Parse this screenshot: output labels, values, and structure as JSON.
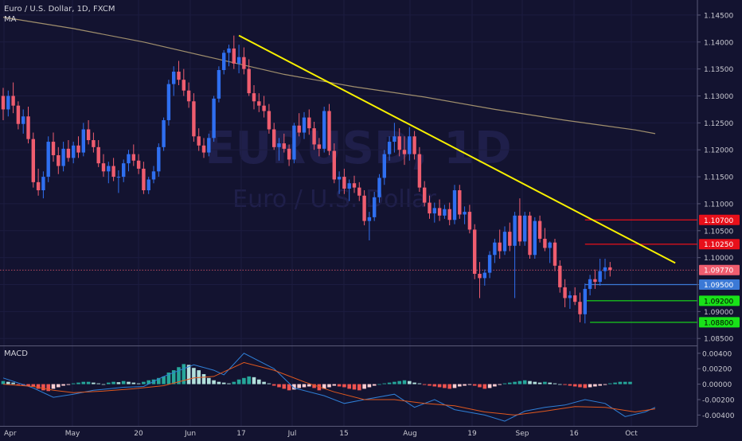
{
  "header": {
    "symbol_line": "Euro / U.S. Dollar, 1D, FXCM",
    "indicator_label": "MA"
  },
  "watermark": {
    "symbol": "EURUSD, 1D",
    "description": "Euro / U.S. Dollar"
  },
  "macd_panel": {
    "label": "MACD"
  },
  "colors": {
    "background": "#131330",
    "candle_up": "#2f6ff0",
    "candle_down": "#ef5d6f",
    "ma_line": "#a08f6d",
    "trendline": "#f7f000",
    "price_line": "#ef5d6f",
    "level_blue": "#3b79d6",
    "level_red": "#e8101a",
    "level_green": "#19e219",
    "macd_line": "#2f7fd6",
    "signal_line": "#e0581e",
    "hist_up_strong": "#26a69a",
    "hist_up_weak": "#b2dfdb",
    "hist_down_strong": "#ef5350",
    "hist_down_weak": "#ffcdd2",
    "axis_text": "#c8c8d0",
    "grid": "#1c1c40"
  },
  "chart_data": [
    {
      "type": "candlestick",
      "title": "Euro / U.S. Dollar, 1D, FXCM",
      "x_labels": [
        "Apr",
        "May",
        "20",
        "Jun",
        "17",
        "Jul",
        "15",
        "Aug",
        "19",
        "Sep",
        "16",
        "Oct"
      ],
      "y_ticks": [
        "1.14500",
        "1.14000",
        "1.13500",
        "1.13000",
        "1.12500",
        "1.12000",
        "1.11500",
        "1.11000",
        "1.10500",
        "1.10000",
        "1.09500",
        "1.09000",
        "1.08500"
      ],
      "ylim": [
        1.084,
        1.1475
      ],
      "bars": [
        [
          1.13,
          1.1315,
          1.1255,
          1.1275
        ],
        [
          1.1275,
          1.131,
          1.1262,
          1.13
        ],
        [
          1.13,
          1.1325,
          1.1268,
          1.1282
        ],
        [
          1.1282,
          1.129,
          1.1238,
          1.1248
        ],
        [
          1.1248,
          1.1275,
          1.123,
          1.1262
        ],
        [
          1.1262,
          1.128,
          1.1212,
          1.122
        ],
        [
          1.122,
          1.1232,
          1.113,
          1.114
        ],
        [
          1.114,
          1.1165,
          1.1115,
          1.1125
        ],
        [
          1.1125,
          1.116,
          1.111,
          1.115
        ],
        [
          1.115,
          1.1225,
          1.114,
          1.1215
        ],
        [
          1.1215,
          1.1232,
          1.1178,
          1.119
        ],
        [
          1.119,
          1.1205,
          1.1155,
          1.117
        ],
        [
          1.117,
          1.1215,
          1.116,
          1.1202
        ],
        [
          1.1202,
          1.1218,
          1.1178,
          1.1185
        ],
        [
          1.1185,
          1.1215,
          1.1175,
          1.1208
        ],
        [
          1.1208,
          1.1225,
          1.1185,
          1.1195
        ],
        [
          1.1195,
          1.125,
          1.1188,
          1.1238
        ],
        [
          1.1238,
          1.1255,
          1.121,
          1.1218
        ],
        [
          1.1218,
          1.1232,
          1.1195,
          1.1205
        ],
        [
          1.1205,
          1.1218,
          1.1168,
          1.1175
        ],
        [
          1.1175,
          1.1192,
          1.115,
          1.116
        ],
        [
          1.116,
          1.1178,
          1.1138,
          1.117
        ],
        [
          1.117,
          1.1185,
          1.1142,
          1.115
        ],
        [
          1.115,
          1.1162,
          1.112,
          1.115
        ],
        [
          1.115,
          1.1182,
          1.114,
          1.1175
        ],
        [
          1.1175,
          1.12,
          1.116,
          1.1192
        ],
        [
          1.1192,
          1.121,
          1.117,
          1.118
        ],
        [
          1.118,
          1.1192,
          1.1155,
          1.1165
        ],
        [
          1.1165,
          1.1178,
          1.1118,
          1.1125
        ],
        [
          1.1125,
          1.115,
          1.1118,
          1.1145
        ],
        [
          1.1145,
          1.117,
          1.1138,
          1.116
        ],
        [
          1.116,
          1.1212,
          1.115,
          1.1205
        ],
        [
          1.1205,
          1.126,
          1.1198,
          1.1255
        ],
        [
          1.1255,
          1.133,
          1.1245,
          1.1322
        ],
        [
          1.1322,
          1.1355,
          1.13,
          1.1345
        ],
        [
          1.1345,
          1.1365,
          1.132,
          1.133
        ],
        [
          1.133,
          1.135,
          1.13,
          1.131
        ],
        [
          1.131,
          1.1325,
          1.1278,
          1.129
        ],
        [
          1.129,
          1.1305,
          1.1215,
          1.1225
        ],
        [
          1.1225,
          1.124,
          1.1198,
          1.1208
        ],
        [
          1.1208,
          1.1222,
          1.1185,
          1.1195
        ],
        [
          1.1195,
          1.123,
          1.1188,
          1.1222
        ],
        [
          1.1222,
          1.13,
          1.1215,
          1.1295
        ],
        [
          1.1295,
          1.1355,
          1.1288,
          1.1348
        ],
        [
          1.1348,
          1.1385,
          1.134,
          1.138
        ],
        [
          1.138,
          1.1395,
          1.1355,
          1.1388
        ],
        [
          1.1388,
          1.1412,
          1.135,
          1.136
        ],
        [
          1.136,
          1.1395,
          1.1342,
          1.1372
        ],
        [
          1.1372,
          1.139,
          1.134,
          1.135
        ],
        [
          1.135,
          1.1368,
          1.13,
          1.1305
        ],
        [
          1.1305,
          1.132,
          1.1275,
          1.129
        ],
        [
          1.129,
          1.1305,
          1.127,
          1.1282
        ],
        [
          1.1282,
          1.13,
          1.126,
          1.1272
        ],
        [
          1.1272,
          1.1285,
          1.123,
          1.1238
        ],
        [
          1.1238,
          1.125,
          1.12,
          1.1205
        ],
        [
          1.1205,
          1.1222,
          1.118,
          1.1212
        ],
        [
          1.1212,
          1.123,
          1.1195,
          1.1202
        ],
        [
          1.1202,
          1.121,
          1.117,
          1.1182
        ],
        [
          1.1182,
          1.125,
          1.1175,
          1.1245
        ],
        [
          1.1245,
          1.1268,
          1.1225,
          1.1232
        ],
        [
          1.1232,
          1.127,
          1.122,
          1.126
        ],
        [
          1.126,
          1.1275,
          1.1228,
          1.124
        ],
        [
          1.124,
          1.1252,
          1.12,
          1.121
        ],
        [
          1.121,
          1.1222,
          1.1188,
          1.1202
        ],
        [
          1.1202,
          1.128,
          1.1195,
          1.1272
        ],
        [
          1.1272,
          1.1285,
          1.119,
          1.1198
        ],
        [
          1.1198,
          1.1212,
          1.1138,
          1.1145
        ],
        [
          1.1145,
          1.116,
          1.1118,
          1.115
        ],
        [
          1.115,
          1.1165,
          1.1118,
          1.1128
        ],
        [
          1.1128,
          1.1145,
          1.1105,
          1.1138
        ],
        [
          1.1138,
          1.1152,
          1.112,
          1.113
        ],
        [
          1.113,
          1.114,
          1.1105,
          1.1115
        ],
        [
          1.1115,
          1.1125,
          1.106,
          1.1068
        ],
        [
          1.1068,
          1.1085,
          1.1032,
          1.1075
        ],
        [
          1.1075,
          1.1122,
          1.1068,
          1.1112
        ],
        [
          1.1112,
          1.1155,
          1.1102,
          1.1148
        ],
        [
          1.1148,
          1.12,
          1.1135,
          1.1192
        ],
        [
          1.1192,
          1.1225,
          1.118,
          1.1215
        ],
        [
          1.1215,
          1.125,
          1.1195,
          1.1225
        ],
        [
          1.1225,
          1.124,
          1.1188,
          1.12
        ],
        [
          1.12,
          1.1225,
          1.1172,
          1.1192
        ],
        [
          1.1192,
          1.1242,
          1.118,
          1.1225
        ],
        [
          1.1225,
          1.1235,
          1.1182,
          1.1192
        ],
        [
          1.1192,
          1.1205,
          1.1122,
          1.113
        ],
        [
          1.113,
          1.1142,
          1.1095,
          1.1102
        ],
        [
          1.1102,
          1.1115,
          1.1072,
          1.1082
        ],
        [
          1.1082,
          1.1102,
          1.1065,
          1.1092
        ],
        [
          1.1092,
          1.1108,
          1.1068,
          1.1078
        ],
        [
          1.1078,
          1.1098,
          1.1072,
          1.109
        ],
        [
          1.109,
          1.1102,
          1.106,
          1.107
        ],
        [
          1.107,
          1.1135,
          1.1062,
          1.1125
        ],
        [
          1.1125,
          1.1135,
          1.1072,
          1.108
        ],
        [
          1.108,
          1.1095,
          1.1062,
          1.1085
        ],
        [
          1.1085,
          1.1098,
          1.1045,
          1.1052
        ],
        [
          1.1052,
          1.1062,
          1.096,
          1.097
        ],
        [
          1.097,
          1.0992,
          1.0925,
          1.0962
        ],
        [
          1.0962,
          1.0978,
          1.0948,
          1.0972
        ],
        [
          1.0972,
          1.1012,
          1.0962,
          1.1005
        ],
        [
          1.1005,
          1.1035,
          1.099,
          1.1028
        ],
        [
          1.1028,
          1.1052,
          1.0998,
          1.1012
        ],
        [
          1.1012,
          1.1058,
          1.1005,
          1.1048
        ],
        [
          1.1048,
          1.1065,
          1.1012,
          1.1022
        ],
        [
          1.1022,
          1.1085,
          1.0925,
          1.1078
        ],
        [
          1.1078,
          1.111,
          1.1022,
          1.103
        ],
        [
          1.103,
          1.1085,
          1.1022,
          1.1078
        ],
        [
          1.1078,
          1.1085,
          1.0998,
          1.1005
        ],
        [
          1.1005,
          1.1075,
          1.0998,
          1.1068
        ],
        [
          1.1068,
          1.1078,
          1.1028,
          1.1035
        ],
        [
          1.1035,
          1.1055,
          1.1012,
          1.1018
        ],
        [
          1.1018,
          1.103,
          1.099,
          1.1028
        ],
        [
          1.1028,
          1.1035,
          1.0975,
          1.0985
        ],
        [
          1.0985,
          1.0995,
          1.0935,
          1.0945
        ],
        [
          1.0945,
          1.096,
          1.0908,
          1.0925
        ],
        [
          1.0925,
          1.0938,
          1.0905,
          1.093
        ],
        [
          1.093,
          1.0945,
          1.0912,
          1.0918
        ],
        [
          1.0918,
          1.0935,
          1.088,
          1.0895
        ],
        [
          1.0895,
          1.0952,
          1.0878,
          1.0942
        ],
        [
          1.0942,
          1.0968,
          1.093,
          1.096
        ],
        [
          1.096,
          1.0978,
          1.0942,
          1.0955
        ],
        [
          1.0955,
          1.0998,
          1.0948,
          1.0975
        ],
        [
          1.0975,
          1.0998,
          1.096,
          1.0982
        ],
        [
          1.0982,
          1.0992,
          1.0965,
          1.0977
        ]
      ],
      "moving_average": {
        "x": [
          0,
          14,
          28,
          42,
          56,
          70,
          84,
          98,
          112,
          126,
          130
        ],
        "y": [
          1.1446,
          1.1425,
          1.14,
          1.137,
          1.134,
          1.1317,
          1.1298,
          1.1275,
          1.1255,
          1.1237,
          1.123
        ]
      },
      "trendline": {
        "from": [
          47,
          1.1412
        ],
        "to": [
          134,
          1.099
        ]
      },
      "last_price": 1.0977,
      "price_labels": [
        {
          "value": 1.107,
          "label": "1.10700",
          "color": "red"
        },
        {
          "value": 1.1025,
          "label": "1.10250",
          "color": "red"
        },
        {
          "value": 1.0977,
          "label": "1.09770",
          "color": "current"
        },
        {
          "value": 1.095,
          "label": "1.09500",
          "color": "blue"
        },
        {
          "value": 1.092,
          "label": "1.09200",
          "color": "green"
        },
        {
          "value": 1.088,
          "label": "1.08800",
          "color": "green"
        }
      ],
      "horizontal_levels": [
        {
          "value": 1.107,
          "from": 116,
          "color": "red"
        },
        {
          "value": 1.1025,
          "from": 116,
          "color": "red"
        },
        {
          "value": 1.095,
          "from": 116,
          "color": "blue"
        },
        {
          "value": 1.092,
          "from": 116,
          "color": "green"
        },
        {
          "value": 1.088,
          "from": 117,
          "color": "green"
        }
      ]
    },
    {
      "type": "macd",
      "title": "MACD",
      "y_ticks": [
        "0.00400",
        "0.00200",
        "0.00000",
        "-0.00200",
        "-0.00400"
      ],
      "ylim": [
        -0.0052,
        0.0047
      ],
      "histogram": [
        0.0004,
        0.0003,
        0.0002,
        -0.0001,
        -0.0002,
        -0.00025,
        -0.00035,
        -0.0006,
        -0.0008,
        -0.0009,
        -0.0006,
        -0.0004,
        -0.0002,
        -0.0001,
        0.0001,
        0.0002,
        0.0003,
        0.0003,
        0.0002,
        0.0001,
        0.0,
        0.0002,
        0.0003,
        0.00025,
        0.0004,
        0.0003,
        0.0002,
        0.0001,
        0.0003,
        0.0005,
        0.0006,
        0.0008,
        0.001,
        0.0015,
        0.0018,
        0.0022,
        0.0026,
        0.0025,
        0.0021,
        0.0018,
        0.0013,
        0.0008,
        0.0005,
        0.0003,
        0.0002,
        0.0001,
        0.0003,
        0.0006,
        0.0008,
        0.001,
        0.0009,
        0.0006,
        0.0003,
        0.0001,
        -0.0002,
        -0.0004,
        -0.0006,
        -0.0008,
        -0.0007,
        -0.0005,
        -0.0004,
        -0.0003,
        -0.0005,
        -0.0008,
        -0.0006,
        -0.0004,
        -0.0002,
        -0.0003,
        -0.0004,
        -0.0006,
        -0.0007,
        -0.0008,
        -0.0006,
        -0.0004,
        -0.0002,
        0.0,
        0.0001,
        0.0002,
        0.0003,
        0.0004,
        0.0005,
        0.0004,
        0.0002,
        0.0001,
        -0.0001,
        -0.0002,
        -0.0003,
        -0.0004,
        -0.0005,
        -0.0006,
        -0.0005,
        -0.0003,
        -0.0002,
        -0.0001,
        -0.0002,
        -0.0004,
        -0.0006,
        -0.0005,
        -0.0003,
        -0.0001,
        0.0001,
        0.0002,
        0.0003,
        0.0004,
        0.0005,
        0.0004,
        0.0003,
        0.0002,
        0.0003,
        0.0002,
        0.0001,
        0.0,
        -0.0001,
        -0.0002,
        -0.0003,
        -0.0004,
        -0.0005,
        -0.0004,
        -0.0003,
        -0.0002,
        -0.0001,
        0.0001,
        0.0002,
        0.0003,
        0.0003,
        0.0003
      ],
      "macd_line": {
        "x": [
          0,
          6,
          10,
          14,
          18,
          24,
          28,
          32,
          38,
          42,
          44,
          48,
          54,
          58,
          64,
          68,
          72,
          78,
          82,
          86,
          90,
          96,
          100,
          104,
          108,
          112,
          116,
          120,
          124,
          128,
          130
        ],
        "y": [
          0.0008,
          -0.0005,
          -0.0017,
          -0.0013,
          -0.0008,
          -0.0004,
          -0.0003,
          0.001,
          0.0025,
          0.0018,
          0.0012,
          0.004,
          0.002,
          -0.0005,
          -0.0015,
          -0.0025,
          -0.002,
          -0.0013,
          -0.003,
          -0.002,
          -0.0033,
          -0.004,
          -0.0048,
          -0.0035,
          -0.003,
          -0.0027,
          -0.002,
          -0.0025,
          -0.0042,
          -0.0036,
          -0.003
        ]
      },
      "signal_line": {
        "x": [
          0,
          6,
          10,
          14,
          20,
          26,
          32,
          38,
          42,
          48,
          54,
          60,
          66,
          72,
          78,
          84,
          90,
          96,
          102,
          108,
          114,
          120,
          126,
          130
        ],
        "y": [
          0.0,
          -0.0003,
          -0.0008,
          -0.0011,
          -0.0009,
          -0.0006,
          -0.0002,
          0.0008,
          0.001,
          0.0028,
          0.0018,
          0.0003,
          -0.001,
          -0.002,
          -0.002,
          -0.0025,
          -0.0028,
          -0.0036,
          -0.004,
          -0.0035,
          -0.0029,
          -0.003,
          -0.0036,
          -0.0032
        ]
      }
    }
  ]
}
